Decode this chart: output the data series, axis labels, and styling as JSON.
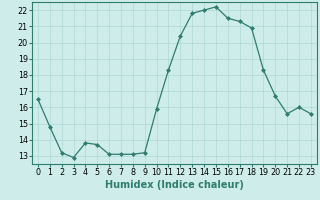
{
  "x": [
    0,
    1,
    2,
    3,
    4,
    5,
    6,
    7,
    8,
    9,
    10,
    11,
    12,
    13,
    14,
    15,
    16,
    17,
    18,
    19,
    20,
    21,
    22,
    23
  ],
  "y": [
    16.5,
    14.8,
    13.2,
    12.9,
    13.8,
    13.7,
    13.1,
    13.1,
    13.1,
    13.2,
    15.9,
    18.3,
    20.4,
    21.8,
    22.0,
    22.2,
    21.5,
    21.3,
    20.9,
    18.3,
    16.7,
    15.6,
    16.0,
    15.6
  ],
  "line_color": "#2e7d6e",
  "marker": "D",
  "marker_size": 2.0,
  "bg_color": "#ceecea",
  "grid_color": "#aed8d5",
  "xlabel": "Humidex (Indice chaleur)",
  "xlim": [
    -0.5,
    23.5
  ],
  "ylim": [
    12.5,
    22.5
  ],
  "xticks": [
    0,
    1,
    2,
    3,
    4,
    5,
    6,
    7,
    8,
    9,
    10,
    11,
    12,
    13,
    14,
    15,
    16,
    17,
    18,
    19,
    20,
    21,
    22,
    23
  ],
  "yticks": [
    13,
    14,
    15,
    16,
    17,
    18,
    19,
    20,
    21,
    22
  ],
  "tick_label_fontsize": 5.8,
  "xlabel_fontsize": 7.0
}
